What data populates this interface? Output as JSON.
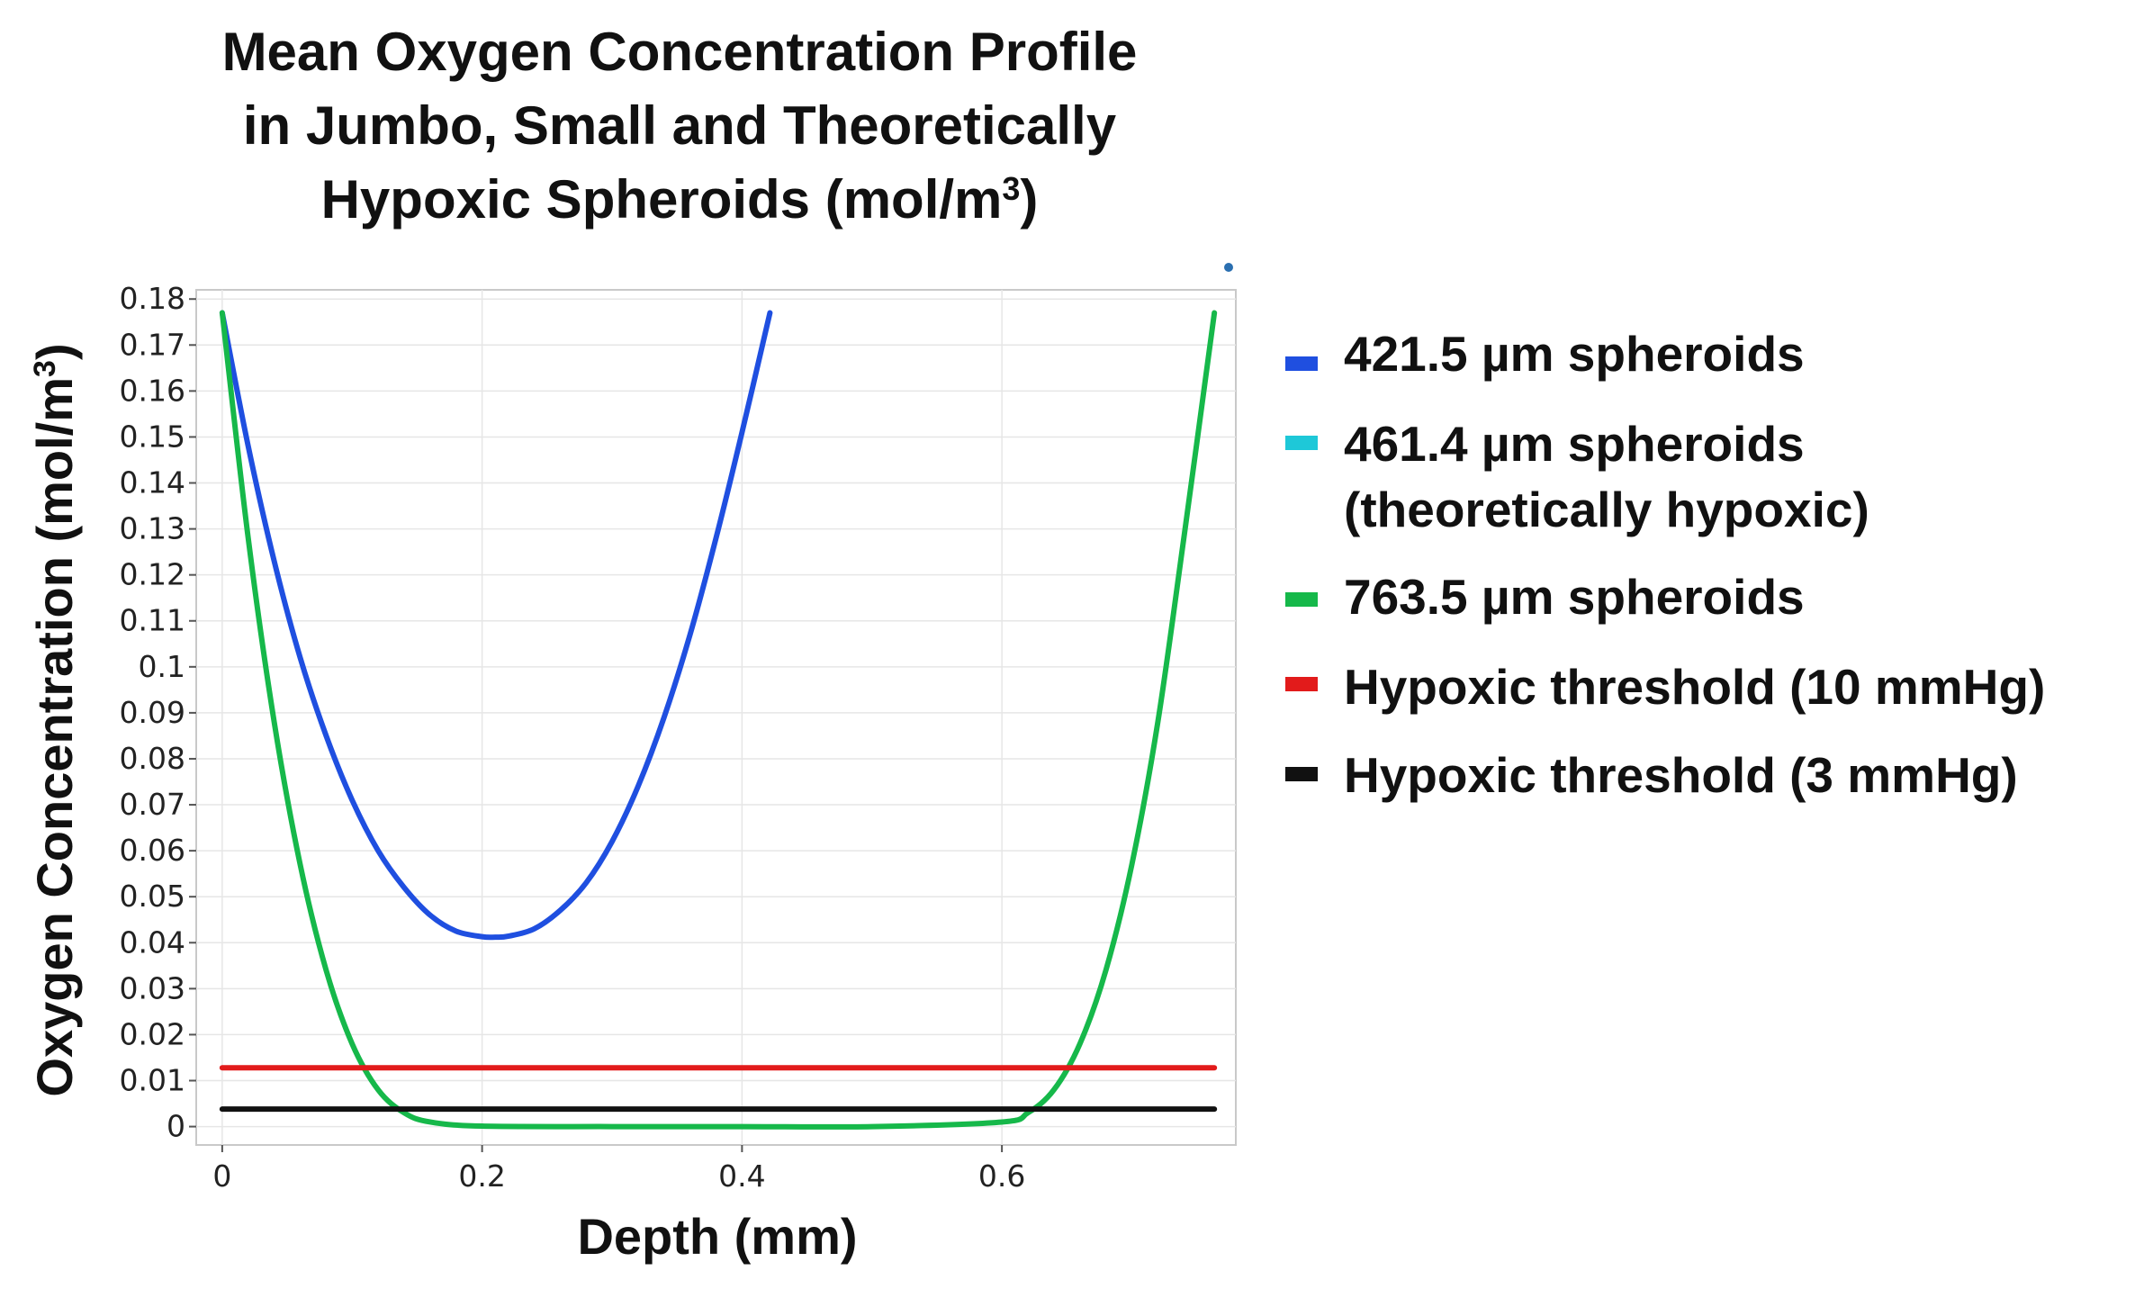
{
  "chart_data": {
    "type": "line",
    "title": [
      "Mean Oxygen Concentration Profile",
      "in Jumbo, Small and Theoretically",
      "Hypoxic Spheroids (mol/m",
      "3",
      ")"
    ],
    "xlabel": "Depth (mm)",
    "ylabel": [
      "Oxygen Concentration (mol/m",
      "3",
      ")"
    ],
    "xlim": [
      -0.02,
      0.78
    ],
    "ylim": [
      -0.004,
      0.182
    ],
    "xticks": [
      0,
      0.2,
      0.4,
      0.6
    ],
    "xtick_labels": [
      "0",
      "0.2",
      "0.4",
      "0.6"
    ],
    "yticks": [
      0,
      0.01,
      0.02,
      0.03,
      0.04,
      0.05,
      0.06,
      0.07,
      0.08,
      0.09,
      0.1,
      0.11,
      0.12,
      0.13,
      0.14,
      0.15,
      0.16,
      0.17,
      0.18
    ],
    "ytick_labels": [
      "0",
      "0.01",
      "0.02",
      "0.03",
      "0.04",
      "0.05",
      "0.06",
      "0.07",
      "0.08",
      "0.09",
      "0.1",
      "0.11",
      "0.12",
      "0.13",
      "0.14",
      "0.15",
      "0.16",
      "0.17",
      "0.18"
    ],
    "grid": true,
    "legend_position": "right",
    "series": [
      {
        "name": "421.5 µm spheroids",
        "color": "#1f4fe0",
        "x": [
          0,
          0.02,
          0.04,
          0.06,
          0.08,
          0.1,
          0.12,
          0.14,
          0.16,
          0.18,
          0.2,
          0.21,
          0.22,
          0.24,
          0.26,
          0.28,
          0.3,
          0.32,
          0.34,
          0.36,
          0.38,
          0.4,
          0.4215
        ],
        "y": [
          0.177,
          0.148,
          0.123,
          0.102,
          0.085,
          0.071,
          0.06,
          0.052,
          0.046,
          0.0425,
          0.0413,
          0.0412,
          0.0414,
          0.043,
          0.047,
          0.053,
          0.062,
          0.074,
          0.089,
          0.107,
          0.128,
          0.151,
          0.177
        ]
      },
      {
        "name": "461.4 µm spheroids",
        "name_line2": "(theoretically hypoxic)",
        "color": "#1ec8d8",
        "x": [],
        "y": []
      },
      {
        "name": "763.5 µm spheroids",
        "color": "#16b84a",
        "x": [
          0,
          0.02,
          0.04,
          0.06,
          0.08,
          0.1,
          0.12,
          0.14,
          0.16,
          0.2,
          0.3,
          0.4,
          0.5,
          0.6,
          0.62,
          0.64,
          0.66,
          0.68,
          0.7,
          0.72,
          0.74,
          0.7635
        ],
        "y": [
          0.177,
          0.128,
          0.088,
          0.057,
          0.034,
          0.018,
          0.008,
          0.003,
          0.001,
          0.0001,
          0,
          0,
          0,
          0.001,
          0.003,
          0.008,
          0.018,
          0.034,
          0.057,
          0.088,
          0.128,
          0.177
        ]
      },
      {
        "name": "Hypoxic threshold (10 mmHg)",
        "color": "#e21b1b",
        "x": [
          0,
          0.7635
        ],
        "y": [
          0.0128,
          0.0128
        ]
      },
      {
        "name": "Hypoxic threshold (3 mmHg)",
        "color": "#111111",
        "x": [
          0,
          0.7635
        ],
        "y": [
          0.0038,
          0.0038
        ]
      }
    ]
  }
}
